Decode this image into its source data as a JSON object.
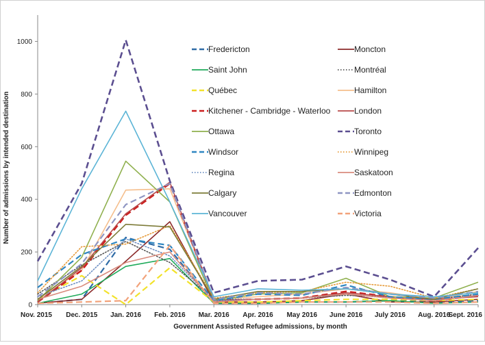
{
  "chart_data": {
    "type": "line",
    "xlabel": "Government Assisted Refugee admissions, by month",
    "ylabel": "Number of admissions by intended destination",
    "ylim": [
      0,
      1100
    ],
    "yticks": [
      0,
      200,
      400,
      600,
      800,
      1000
    ],
    "grid": false,
    "legend_position": "top-right",
    "categories": [
      "Nov. 2015",
      "Dec. 2015",
      "Jan. 2016",
      "Feb. 2016",
      "Mar. 2016",
      "Apr. 2016",
      "May 2016",
      "June 2016",
      "July 2016",
      "Aug. 2016",
      "Sept. 2016"
    ],
    "series": [
      {
        "name": "Fredericton",
        "color": "#2E6BA6",
        "dash": "dash",
        "values": [
          5,
          20,
          255,
          210,
          5,
          5,
          10,
          10,
          15,
          10,
          15
        ]
      },
      {
        "name": "Moncton",
        "color": "#8B2A2A",
        "dash": "solid",
        "values": [
          5,
          20,
          165,
          315,
          10,
          10,
          15,
          40,
          10,
          10,
          20
        ]
      },
      {
        "name": "Saint John",
        "color": "#1EAA5A",
        "dash": "solid",
        "values": [
          5,
          40,
          145,
          175,
          5,
          5,
          10,
          10,
          15,
          5,
          10
        ]
      },
      {
        "name": "Montréal",
        "color": "#555555",
        "dash": "dot",
        "values": [
          40,
          150,
          240,
          160,
          20,
          20,
          25,
          35,
          30,
          20,
          40
        ]
      },
      {
        "name": "Québec",
        "color": "#F2E22A",
        "dash": "dash",
        "values": [
          20,
          110,
          0,
          140,
          10,
          10,
          15,
          20,
          20,
          15,
          20
        ]
      },
      {
        "name": "Hamilton",
        "color": "#F5BE8C",
        "dash": "solid",
        "values": [
          20,
          130,
          435,
          440,
          20,
          30,
          40,
          60,
          45,
          20,
          50
        ]
      },
      {
        "name": "Kitchener - Cambridge - Waterloo",
        "color": "#CC1E1E",
        "dash": "dash",
        "values": [
          10,
          130,
          340,
          460,
          15,
          20,
          25,
          50,
          30,
          15,
          35
        ]
      },
      {
        "name": "London",
        "color": "#B84A4A",
        "dash": "solid",
        "values": [
          10,
          140,
          345,
          465,
          15,
          20,
          25,
          45,
          30,
          20,
          30
        ]
      },
      {
        "name": "Ottawa",
        "color": "#8FB04E",
        "dash": "solid",
        "values": [
          15,
          180,
          545,
          390,
          15,
          40,
          45,
          100,
          30,
          25,
          85
        ]
      },
      {
        "name": "Toronto",
        "color": "#5B4E90",
        "dash": "dash",
        "values": [
          165,
          460,
          1005,
          470,
          45,
          90,
          95,
          145,
          95,
          30,
          215
        ]
      },
      {
        "name": "Windsor",
        "color": "#2E86C1",
        "dash": "dash",
        "values": [
          65,
          190,
          250,
          225,
          15,
          40,
          35,
          75,
          30,
          20,
          40
        ]
      },
      {
        "name": "Winnipeg",
        "color": "#E69A38",
        "dash": "dot",
        "values": [
          45,
          220,
          230,
          300,
          25,
          45,
          50,
          85,
          70,
          25,
          60
        ]
      },
      {
        "name": "Regina",
        "color": "#6C8EC2",
        "dash": "dot",
        "values": [
          30,
          90,
          250,
          185,
          15,
          20,
          25,
          40,
          25,
          15,
          35
        ]
      },
      {
        "name": "Saskatoon",
        "color": "#D98C7E",
        "dash": "solid",
        "values": [
          20,
          70,
          160,
          200,
          10,
          20,
          25,
          40,
          25,
          15,
          35
        ]
      },
      {
        "name": "Calgary",
        "color": "#7D7B38",
        "dash": "solid",
        "values": [
          20,
          145,
          305,
          295,
          20,
          50,
          50,
          60,
          40,
          20,
          60
        ]
      },
      {
        "name": "Edmonton",
        "color": "#8E95C2",
        "dash": "dash",
        "values": [
          30,
          155,
          380,
          460,
          20,
          45,
          40,
          65,
          40,
          25,
          50
        ]
      },
      {
        "name": "Vancouver",
        "color": "#5BB4D6",
        "dash": "solid",
        "values": [
          90,
          440,
          735,
          390,
          30,
          60,
          55,
          60,
          40,
          30,
          45
        ]
      },
      {
        "name": "Victoria",
        "color": "#F2A27A",
        "dash": "dash",
        "values": [
          5,
          10,
          15,
          225,
          5,
          5,
          10,
          10,
          10,
          5,
          10
        ]
      }
    ]
  }
}
